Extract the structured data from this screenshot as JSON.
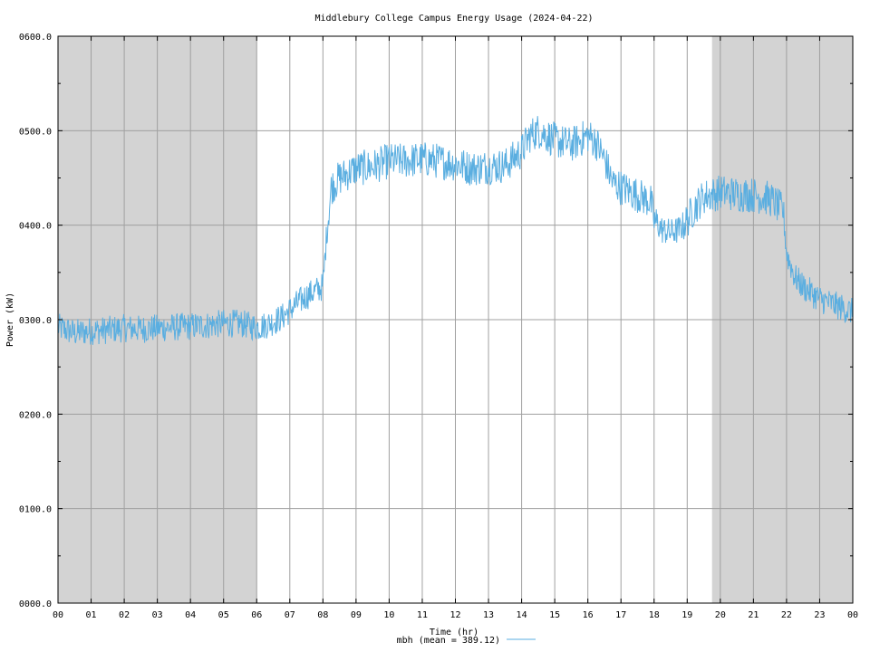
{
  "chart_data": {
    "type": "line",
    "title": "Middlebury College Campus Energy Usage (2024-04-22)",
    "xlabel": "Time (hr)",
    "ylabel": "Power (kW)",
    "xlim": [
      0,
      24
    ],
    "ylim": [
      0,
      600
    ],
    "x_ticks": [
      "00",
      "01",
      "02",
      "03",
      "04",
      "05",
      "06",
      "07",
      "08",
      "09",
      "10",
      "11",
      "12",
      "13",
      "14",
      "15",
      "16",
      "17",
      "18",
      "19",
      "20",
      "21",
      "22",
      "23",
      "00"
    ],
    "y_ticks": [
      "0000.0",
      "0100.0",
      "0200.0",
      "0300.0",
      "0400.0",
      "0500.0",
      "0600.0"
    ],
    "y_tick_values": [
      0,
      100,
      200,
      300,
      400,
      500,
      600
    ],
    "grid": true,
    "shaded_ranges_hr": [
      [
        0,
        6
      ],
      [
        19.75,
        24
      ]
    ],
    "colors": {
      "series": "#5aaee0",
      "shade": "#d3d3d3",
      "grid": "#a0a0a0"
    },
    "series": [
      {
        "name": "mbh (mean = 389.12)",
        "x": [
          0,
          0.5,
          1,
          1.5,
          2,
          2.5,
          3,
          3.5,
          4,
          4.5,
          5,
          5.5,
          6,
          6.25,
          6.5,
          6.75,
          7,
          7.25,
          7.5,
          7.75,
          8,
          8.1,
          8.25,
          8.5,
          9,
          9.5,
          10,
          10.5,
          11,
          11.5,
          12,
          12.5,
          13,
          13.5,
          14,
          14.25,
          14.5,
          15,
          15.5,
          16,
          16.25,
          16.5,
          16.75,
          17,
          17.5,
          17.9,
          18,
          18.25,
          18.5,
          18.75,
          19,
          19.25,
          19.5,
          20,
          20.5,
          21,
          21.5,
          21.9,
          22,
          22.25,
          22.5,
          23,
          23.5,
          24
        ],
        "y": [
          292,
          286,
          288,
          289,
          291,
          290,
          291,
          292,
          293,
          294,
          296,
          296,
          292,
          294,
          298,
          302,
          310,
          318,
          325,
          330,
          335,
          385,
          440,
          450,
          460,
          462,
          468,
          468,
          470,
          468,
          465,
          460,
          462,
          463,
          478,
          495,
          500,
          490,
          485,
          495,
          488,
          470,
          445,
          440,
          432,
          425,
          405,
          395,
          392,
          395,
          405,
          420,
          430,
          435,
          433,
          432,
          428,
          415,
          370,
          345,
          335,
          322,
          315,
          308
        ]
      }
    ]
  }
}
